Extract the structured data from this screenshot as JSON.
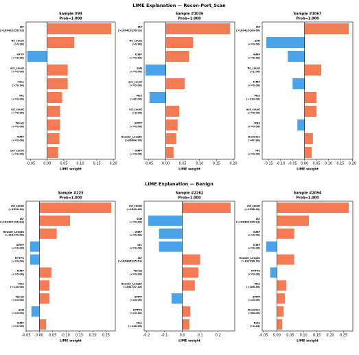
{
  "suptitles": [
    "LIME Explanation — Recon-Port_Scan",
    "LIME Explanation — Benign"
  ],
  "chart_data": [
    {
      "type": "barh",
      "title": "Sample #94",
      "subtitle": "Prob=1.000",
      "xlabel": "LIME weight",
      "categories": [
        [
          "IAT",
          "(>169410256.92)"
        ],
        [
          "fin_count",
          "(>0.90)"
        ],
        [
          "HTTP",
          "(<=0.00)"
        ],
        [
          "ack_count",
          "(<=0.00)"
        ],
        [
          "Max",
          "(>79.10)"
        ],
        [
          "IRC",
          "(<=0.00)"
        ],
        [
          "rst_count",
          "(<=0.90)"
        ],
        [
          "Telnet",
          "(<=0.00)"
        ],
        [
          "IGMP",
          "(<=0.00)"
        ],
        [
          "syn_count",
          "(<=0.00)"
        ]
      ],
      "values": [
        0.194,
        0.082,
        -0.06,
        0.062,
        0.062,
        0.045,
        0.039,
        0.039,
        0.037,
        0.033
      ],
      "xlim": [
        -0.064,
        0.206
      ],
      "xticks": [
        -0.05,
        {
          "value": 0,
          "label": "0.00"
        },
        0.05,
        {
          "value": 0.1,
          "label": "0.10"
        },
        0.15,
        {
          "value": 0.2,
          "label": "0.20"
        }
      ],
      "color_positive": "#f47c55",
      "color_negative": "#4ba3e9"
    },
    {
      "type": "barh",
      "title": "Sample #1036",
      "subtitle": "Prob=1.000",
      "xlabel": "LIME weight",
      "categories": [
        [
          "IAT",
          "(>169410256.92)"
        ],
        [
          "fin_count",
          "(>0.90)"
        ],
        [
          "ICMP",
          "(<=0.00)"
        ],
        [
          "SSH",
          "(<=0.00)"
        ],
        [
          "ack_count",
          "(<=0.00)"
        ],
        [
          "Max",
          "(>42.00)"
        ],
        [
          "rst_count",
          "(>0.90)"
        ],
        [
          "SMTP",
          "(<=0.00)"
        ],
        [
          "Header_Length",
          "(>36604.70)"
        ],
        [
          "IGMP",
          "(<=0.00)"
        ]
      ],
      "values": [
        0.19,
        0.081,
        0.069,
        -0.06,
        0.056,
        -0.048,
        0.04,
        0.035,
        0.031,
        0.023
      ],
      "xlim": [
        -0.064,
        0.204
      ],
      "xticks": [
        -0.05,
        {
          "value": 0,
          "label": "0.00"
        },
        0.05,
        {
          "value": 0.1,
          "label": "0.10"
        },
        0.15,
        {
          "value": 0.2,
          "label": "0.20"
        }
      ],
      "color_positive": "#f47c55",
      "color_negative": "#4ba3e9"
    },
    {
      "type": "barh",
      "title": "Sample #1067",
      "subtitle": "Prob=1.000",
      "xlabel": "LIME weight",
      "categories": [
        [
          "IAT",
          "(>169410169.60)"
        ],
        [
          "SSH",
          "(<=0.00)"
        ],
        [
          "IGMP",
          "(<=0.00)"
        ],
        [
          "fin_count",
          "(>1.00)"
        ],
        [
          "ICMP",
          "(<=0.00)"
        ],
        [
          "Max",
          "(>110.00)"
        ],
        [
          "ack_count",
          "(<=0.00)"
        ],
        [
          "DNS",
          "(<=0.00)"
        ],
        [
          "Duration",
          "(>47.80)"
        ],
        [
          "IRC",
          "(<=0.00)"
        ]
      ],
      "values": [
        0.185,
        -0.16,
        -0.07,
        0.07,
        -0.05,
        0.05,
        0.05,
        -0.03,
        0.035,
        0.03
      ],
      "xlim": [
        -0.177,
        0.202
      ],
      "xticks": [
        -0.15,
        {
          "value": -0.1,
          "label": "-0.10"
        },
        -0.05,
        {
          "value": 0,
          "label": "0.00"
        },
        0.05,
        {
          "value": 0.1,
          "label": "0.10"
        },
        0.15,
        {
          "value": 0.2,
          "label": "0.20"
        }
      ],
      "color_positive": "#f47c55",
      "color_negative": "#4ba3e9"
    },
    {
      "type": "barh",
      "title": "Sample #225",
      "subtitle": "Prob=1.000",
      "xlabel": "LIME weight",
      "categories": [
        [
          "rst_count",
          "(>1529.20)"
        ],
        [
          "IAT",
          "(>169427196.83)"
        ],
        [
          "Header_Length",
          "(>114170.00)"
        ],
        [
          "SMTP",
          "(<=0.00)"
        ],
        [
          "HTTPS",
          "(<=0.00)"
        ],
        [
          "ICMP",
          "(<=0.00)"
        ],
        [
          "Max",
          "(>110.00)"
        ],
        [
          "Telnet",
          "(<=0.00)"
        ],
        [
          "SSH",
          "(<=0.00)"
        ],
        [
          "IGMP",
          "(<=0.00)"
        ]
      ],
      "values": [
        0.27,
        0.115,
        0.065,
        -0.035,
        -0.035,
        0.045,
        0.038,
        0.038,
        -0.03,
        0.025
      ],
      "xlim": [
        -0.05,
        0.285
      ],
      "xticks": [
        -0.05,
        {
          "value": 0,
          "label": "0.00"
        },
        0.05,
        {
          "value": 0.1,
          "label": "0.10"
        },
        0.15,
        {
          "value": 0.2,
          "label": "0.20"
        },
        0.25
      ],
      "color_positive": "#f47c55",
      "color_negative": "#4ba3e9"
    },
    {
      "type": "barh",
      "title": "Sample #2262",
      "subtitle": "Prob=1.000",
      "xlabel": "LIME weight",
      "categories": [
        [
          "rst_count",
          "(>1590.40)"
        ],
        [
          "SSH",
          "(<=0.00)"
        ],
        [
          "IGMP",
          "(<=0.00)"
        ],
        [
          "IRC",
          "(<=0.00)"
        ],
        [
          "IAT",
          "(>169406235.61)"
        ],
        [
          "Telnet",
          "(<=0.00)"
        ],
        [
          "Header_Length",
          "(>201757.10)"
        ],
        [
          "SMTP",
          "(<=0.00)"
        ],
        [
          "HTTPS",
          "(<=0.10)"
        ],
        [
          "Max",
          "(>110.00)"
        ]
      ],
      "values": [
        0.27,
        -0.19,
        -0.13,
        -0.13,
        0.1,
        0.09,
        0.07,
        -0.06,
        0.045,
        0.04
      ],
      "xlim": [
        -0.213,
        0.293
      ],
      "xticks": [
        -0.2,
        -0.1,
        {
          "value": 0,
          "label": "0.0"
        },
        0.1,
        0.2
      ],
      "color_positive": "#f47c55",
      "color_negative": "#4ba3e9"
    },
    {
      "type": "barh",
      "title": "Sample #2094",
      "subtitle": "Prob=1.000",
      "xlabel": "LIME weight",
      "categories": [
        [
          "rst_count",
          "(>1358.00)"
        ],
        [
          "IAT",
          "(>169403125.93)"
        ],
        [
          "IGMP",
          "(<=0.00)"
        ],
        [
          "ICMP",
          "(<=0.00)"
        ],
        [
          "Header_Length",
          "(>192396.70)"
        ],
        [
          "HTTPS",
          "(<=0.00)"
        ],
        [
          "Max",
          "(>108.50)"
        ],
        [
          "SMTP",
          "(<=0.00)"
        ],
        [
          "Duration",
          "(>64.00)"
        ],
        [
          "Rate",
          "(>1.24)"
        ]
      ],
      "values": [
        0.27,
        0.12,
        0.065,
        -0.04,
        0.065,
        -0.025,
        0.035,
        0.03,
        0.025,
        0.02
      ],
      "xlim": [
        -0.055,
        0.285
      ],
      "xticks": [
        -0.05,
        {
          "value": 0,
          "label": "0.00"
        },
        0.05,
        {
          "value": 0.1,
          "label": "0.10"
        },
        0.15,
        {
          "value": 0.2,
          "label": "0.20"
        },
        0.25
      ],
      "color_positive": "#f47c55",
      "color_negative": "#4ba3e9"
    }
  ]
}
